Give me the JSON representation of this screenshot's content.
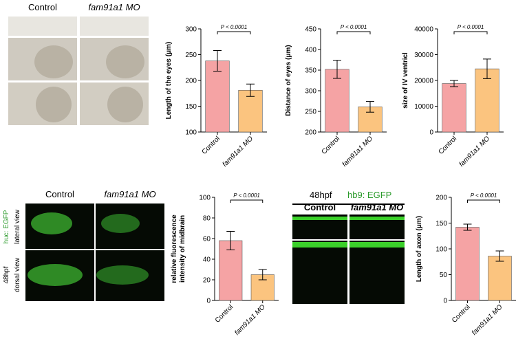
{
  "images": {
    "top": {
      "control": "Control",
      "mo": "fam91a1 MO"
    },
    "huc": {
      "control": "Control",
      "mo": "fam91a1 MO",
      "marker": "huc: EGFP",
      "stage": "48hpf",
      "lateral": "lateral view",
      "dorsal": "dorsal view"
    },
    "hb9": {
      "stage": "48hpf",
      "marker": "hb9: EGFP",
      "control": "Control",
      "mo": "fam91a1 MO"
    }
  },
  "chart_data": [
    {
      "type": "bar",
      "ylabel": [
        "Length of the eyes (μm)"
      ],
      "categories": [
        "Control",
        "fam91a1 MO"
      ],
      "values": [
        238,
        181
      ],
      "errors": [
        20,
        12
      ],
      "colors": [
        "#f5a3a4",
        "#fbc47f"
      ],
      "ylim": [
        100,
        300
      ],
      "yticks": [
        100,
        150,
        200,
        250,
        300
      ],
      "annotation": "P < 0.0001"
    },
    {
      "type": "bar",
      "ylabel": [
        "Distance of eyes (μm)"
      ],
      "categories": [
        "Control",
        "fam91a1 MO"
      ],
      "values": [
        352,
        261
      ],
      "errors": [
        22,
        13
      ],
      "colors": [
        "#f5a3a4",
        "#fbc47f"
      ],
      "ylim": [
        200,
        450
      ],
      "yticks": [
        200,
        250,
        300,
        350,
        400,
        450
      ],
      "annotation": "P < 0.0001"
    },
    {
      "type": "bar",
      "ylabel": [
        "size of IV ventricl"
      ],
      "categories": [
        "Control",
        "fam91a1 MO"
      ],
      "values": [
        18800,
        24500
      ],
      "errors": [
        1200,
        3800
      ],
      "colors": [
        "#f5a3a4",
        "#fbc47f"
      ],
      "ylim": [
        0,
        40000
      ],
      "yticks": [
        0,
        10000,
        20000,
        30000,
        40000
      ],
      "annotation": "P < 0.0001"
    },
    {
      "type": "bar",
      "ylabel": [
        "relative fluorescence",
        "intensity of midbrain"
      ],
      "categories": [
        "Control",
        "fam91a1 MO"
      ],
      "values": [
        58,
        25
      ],
      "errors": [
        9,
        5
      ],
      "colors": [
        "#f5a3a4",
        "#fbc47f"
      ],
      "ylim": [
        0,
        100
      ],
      "yticks": [
        0,
        20,
        40,
        60,
        80,
        100
      ],
      "annotation": "P < 0.0001"
    },
    {
      "type": "bar",
      "ylabel": [
        "Length of axon (μm)"
      ],
      "categories": [
        "Control",
        "fam91a1 MO"
      ],
      "values": [
        142,
        86
      ],
      "errors": [
        6,
        10
      ],
      "colors": [
        "#f5a3a4",
        "#fbc47f"
      ],
      "ylim": [
        0,
        200
      ],
      "yticks": [
        0,
        50,
        100,
        150,
        200
      ],
      "annotation": "P < 0.0001"
    }
  ]
}
